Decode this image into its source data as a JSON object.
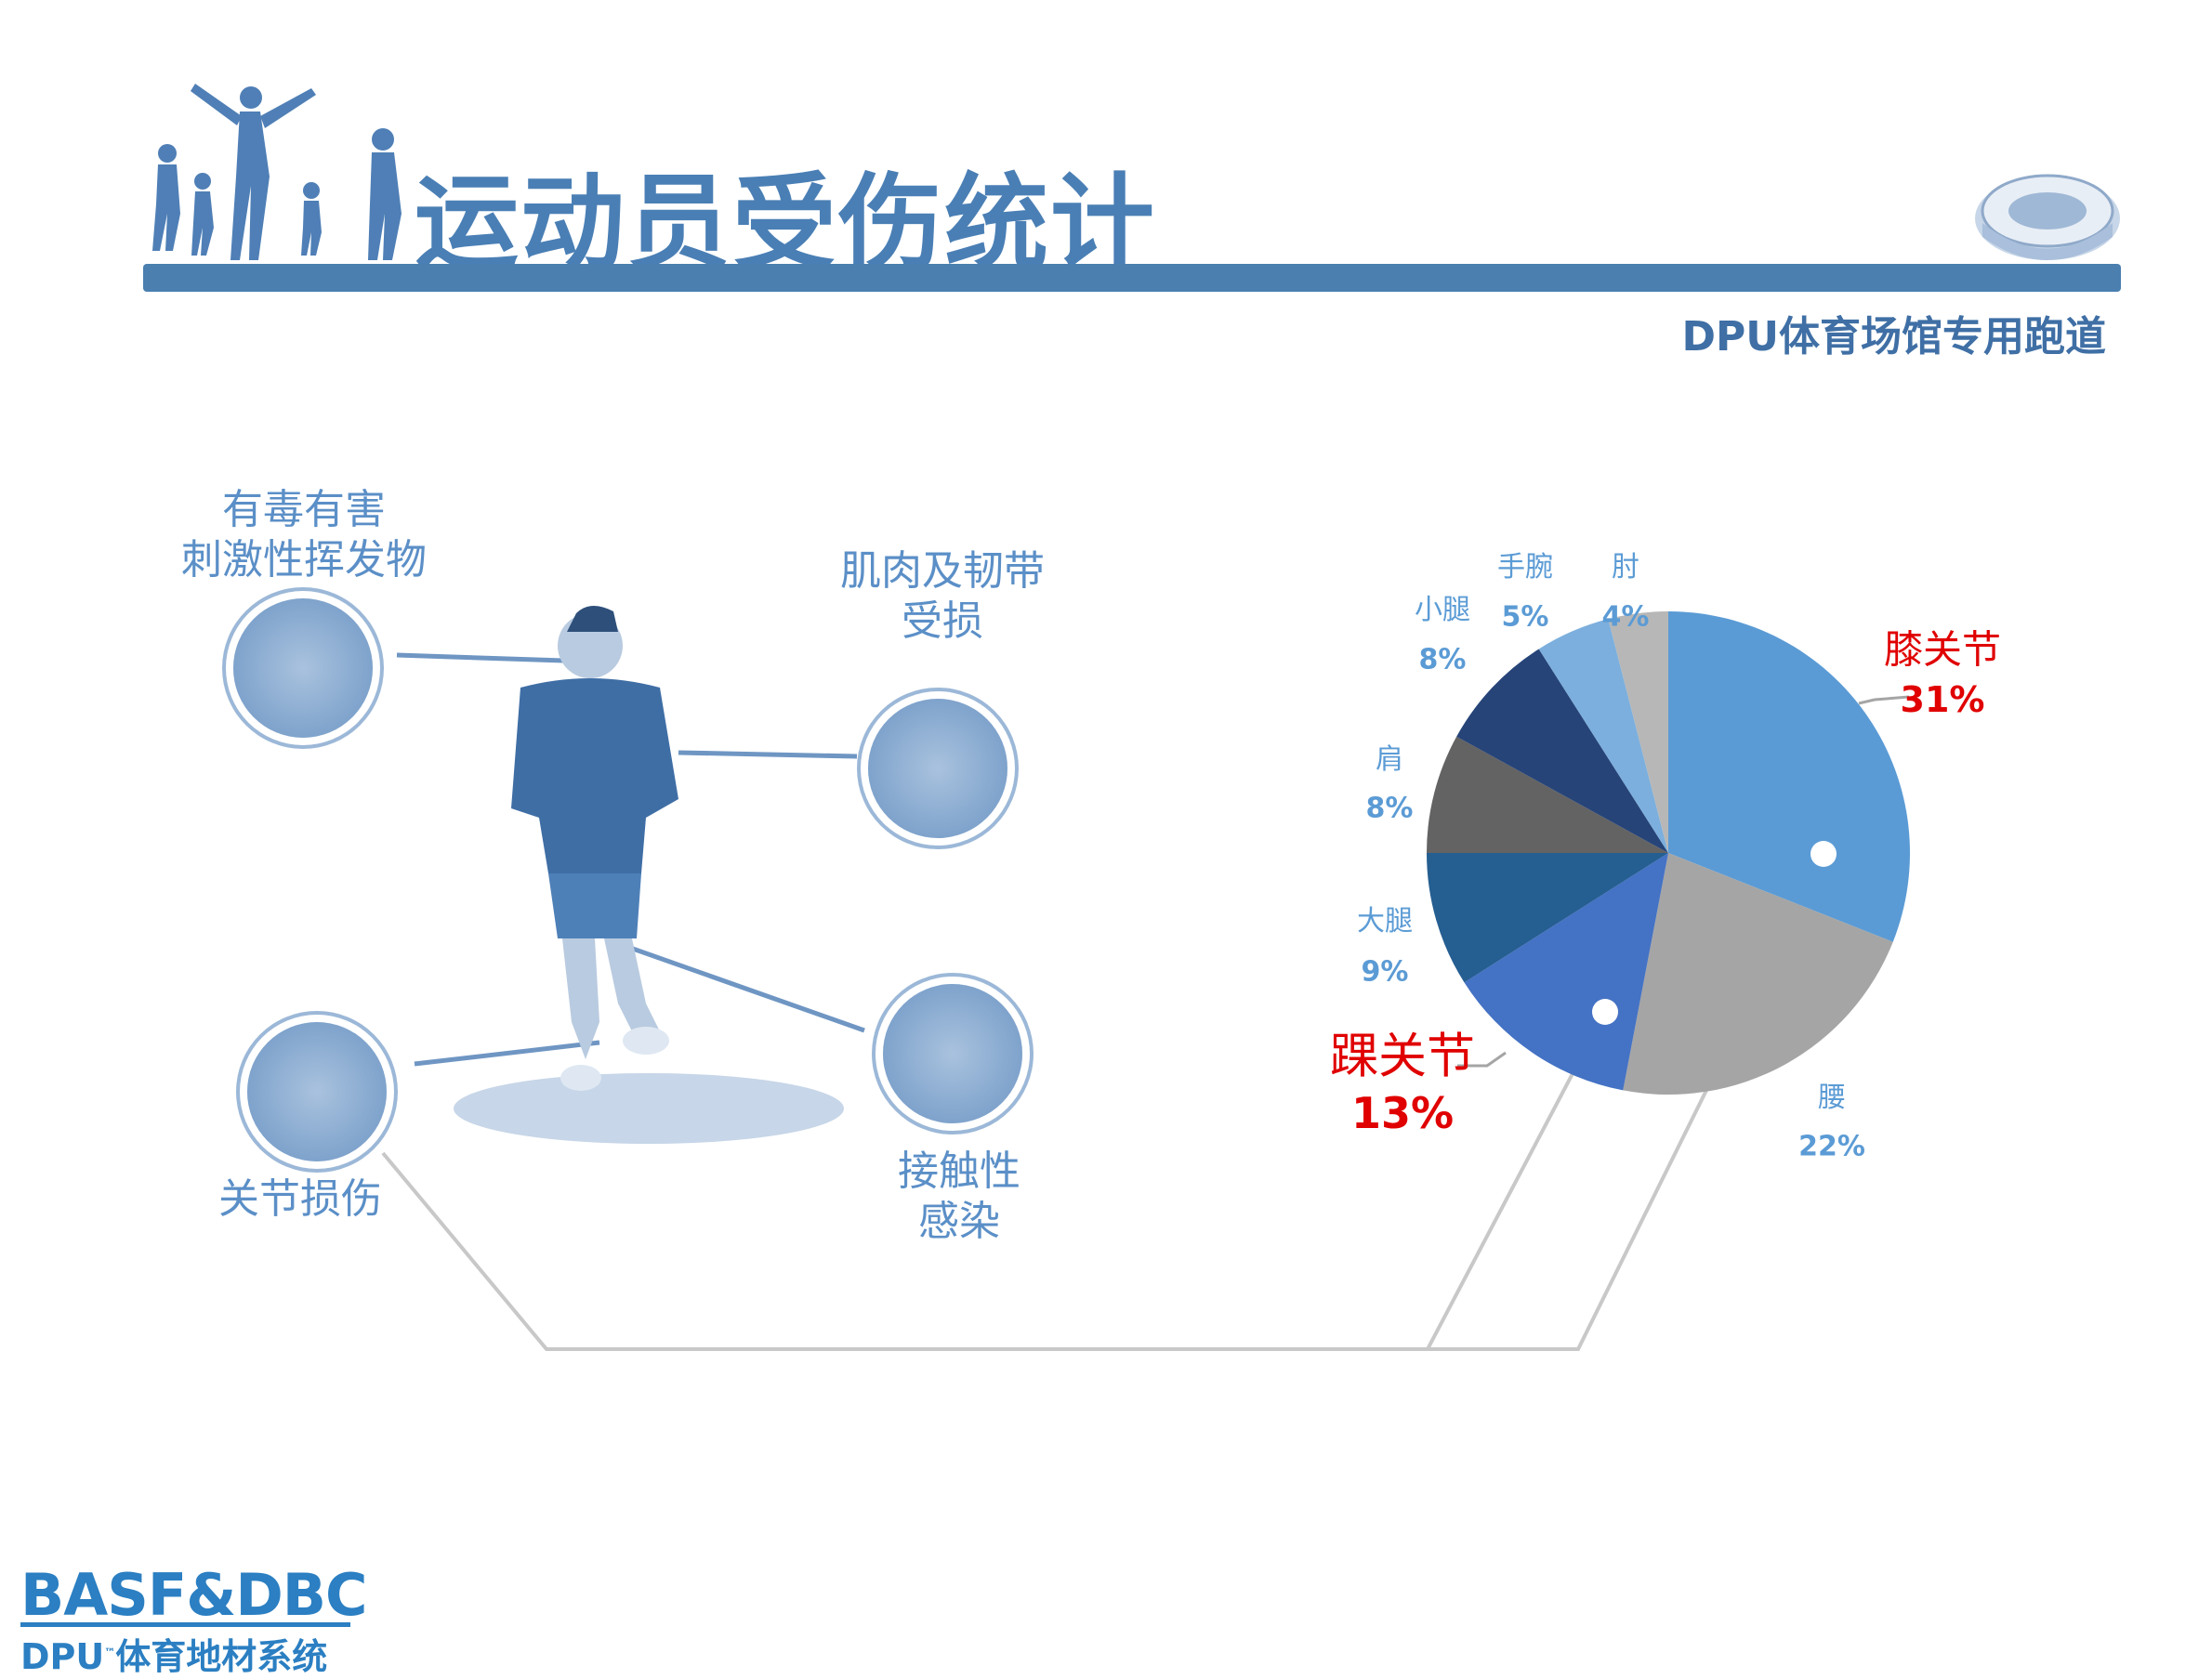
{
  "header": {
    "title": "运动员受伤统计",
    "subtitle": "DPU体育场馆专用跑道"
  },
  "injury_types": [
    {
      "label_lines": [
        "有毒有害",
        "刺激性挥发物"
      ],
      "icon": "brain-icon"
    },
    {
      "label_lines": [
        "肌肉及韧带",
        "受损"
      ],
      "icon": "arm-icon"
    },
    {
      "label_lines": [
        "关节损伤"
      ],
      "icon": "shoe-icon"
    },
    {
      "label_lines": [
        "接触性",
        "感染"
      ],
      "icon": "skin-icon"
    }
  ],
  "logo": {
    "line1": "BASF&DBC",
    "line2": "DPU",
    "tm": "™",
    "line3": "体育地材系统"
  },
  "chart_data": {
    "type": "pie",
    "start": "12 o'clock, clockwise",
    "slices": [
      {
        "label": "膝关节",
        "value": 31,
        "pct": "31%",
        "color": "#5b9bd5",
        "highlight": true
      },
      {
        "label": "腰",
        "value": 22,
        "pct": "22%",
        "color": "#a5a5a5",
        "highlight": false
      },
      {
        "label": "踝关节",
        "value": 13,
        "pct": "13%",
        "color": "#4472c4",
        "highlight": true
      },
      {
        "label": "大腿",
        "value": 9,
        "pct": "9%",
        "color": "#255e91",
        "highlight": false
      },
      {
        "label": "肩",
        "value": 8,
        "pct": "8%",
        "color": "#636363",
        "highlight": false
      },
      {
        "label": "小腿",
        "value": 8,
        "pct": "8%",
        "color": "#264478",
        "highlight": false
      },
      {
        "label": "手腕",
        "value": 5,
        "pct": "5%",
        "color": "#7cafdd",
        "highlight": false
      },
      {
        "label": "肘",
        "value": 4,
        "pct": "4%",
        "color": "#b7b7b7",
        "highlight": false
      }
    ],
    "label_color": "#5b9bd5",
    "highlight_color": "#e00000"
  }
}
